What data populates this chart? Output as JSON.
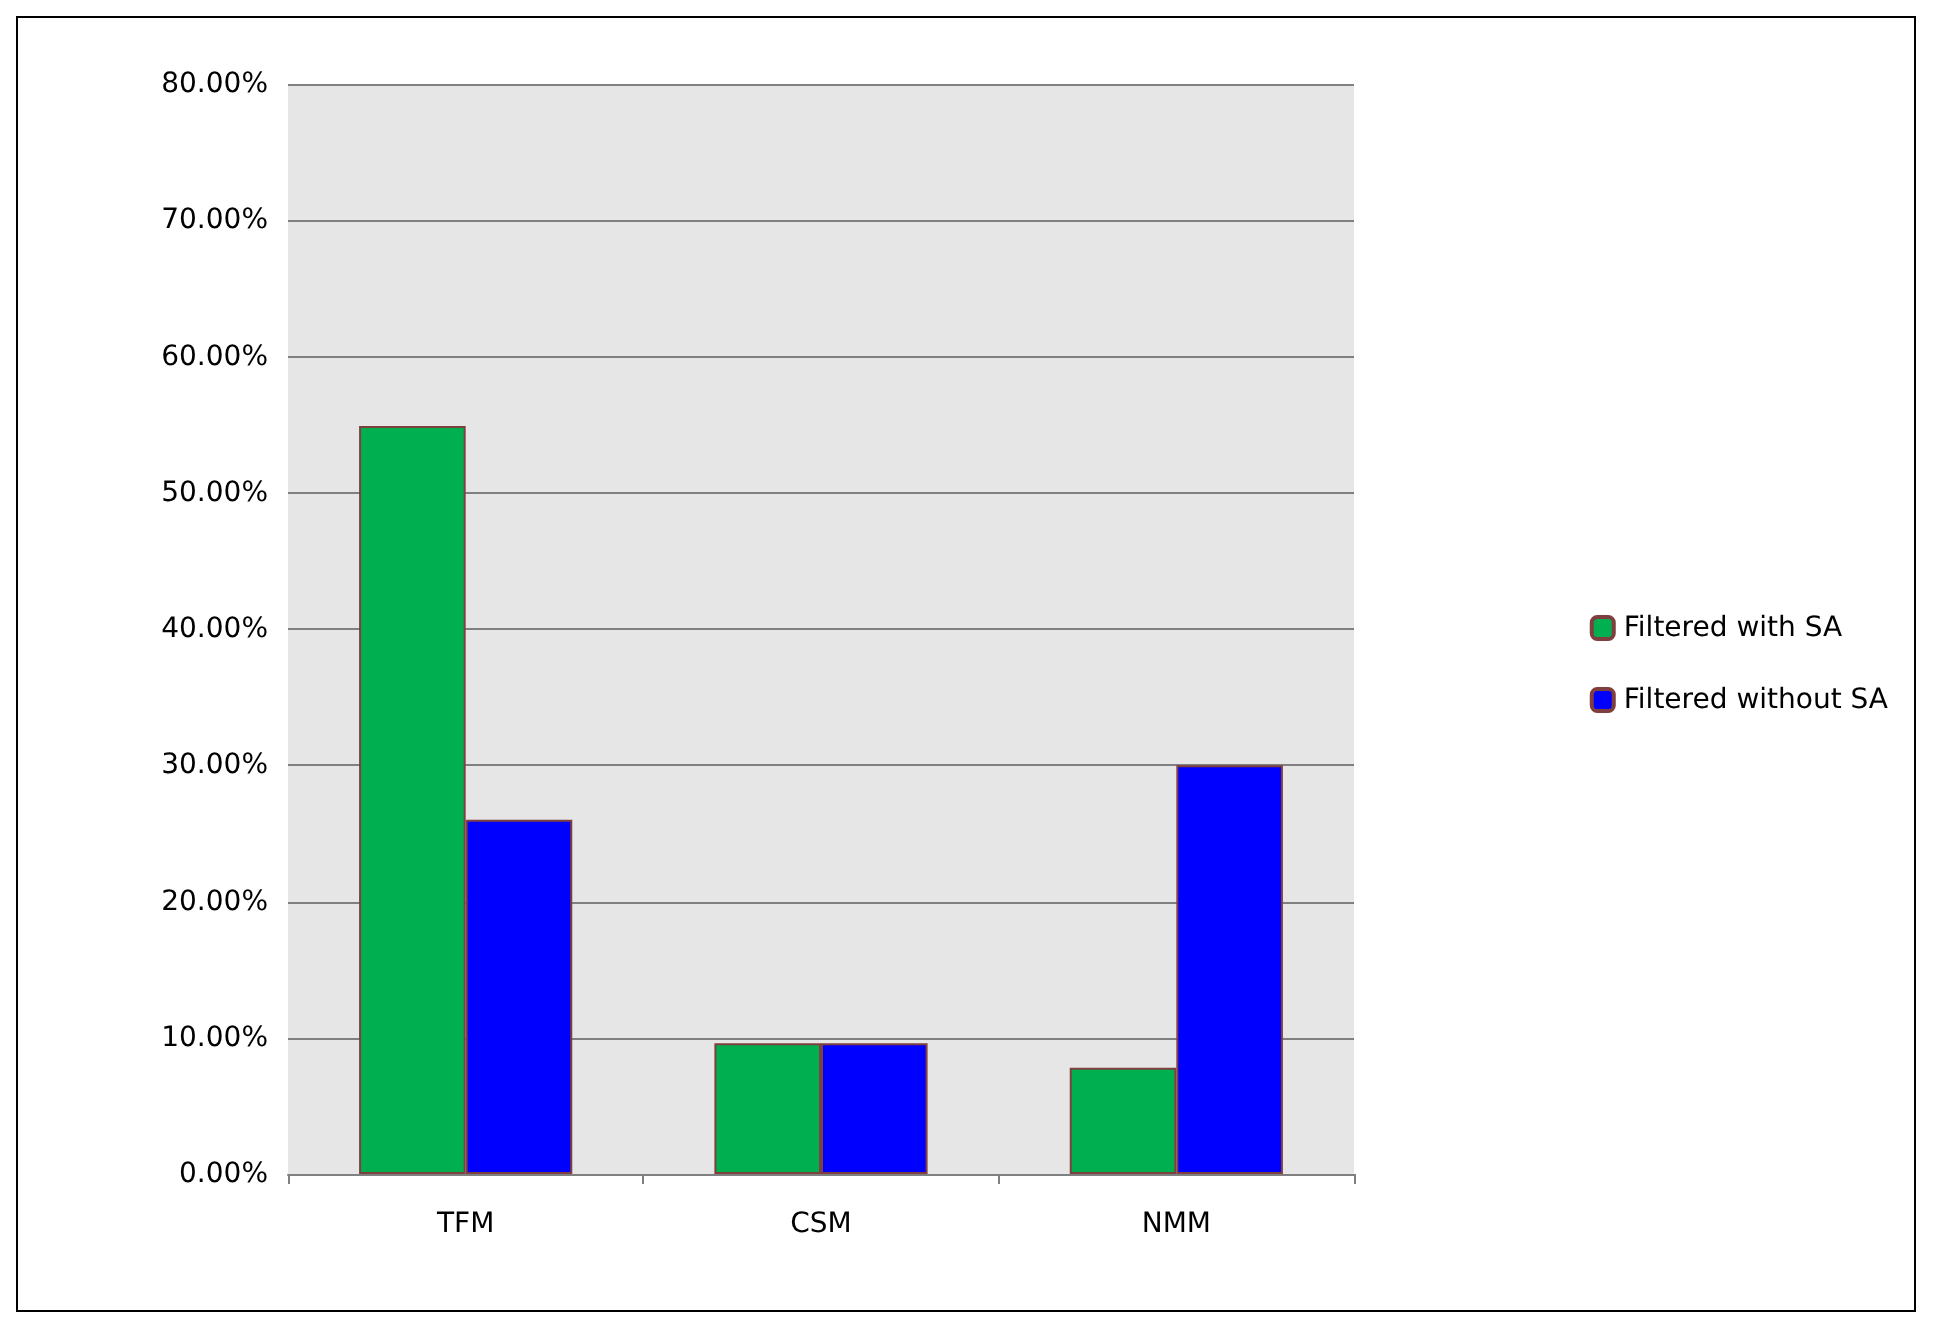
{
  "chart_data": {
    "type": "bar",
    "categories": [
      "TFM",
      "CSM",
      "NMM"
    ],
    "series": [
      {
        "name": "Filtered with SA",
        "color": "#00b050",
        "values": [
          54.9,
          9.6,
          7.8
        ]
      },
      {
        "name": "Filtered without SA",
        "color": "#0000ff",
        "values": [
          26,
          9.6,
          30
        ]
      }
    ],
    "ylim": [
      0,
      80
    ],
    "yticks": [
      {
        "value": 0,
        "label": "0.00%"
      },
      {
        "value": 10,
        "label": "10.00%"
      },
      {
        "value": 20,
        "label": "20.00%"
      },
      {
        "value": 30,
        "label": "30.00%"
      },
      {
        "value": 40,
        "label": "40.00%"
      },
      {
        "value": 50,
        "label": "50.00%"
      },
      {
        "value": 60,
        "label": "60.00%"
      },
      {
        "value": 70,
        "label": "70.00%"
      },
      {
        "value": 80,
        "label": "80.00%"
      }
    ],
    "grid": "y",
    "legend": "right"
  }
}
